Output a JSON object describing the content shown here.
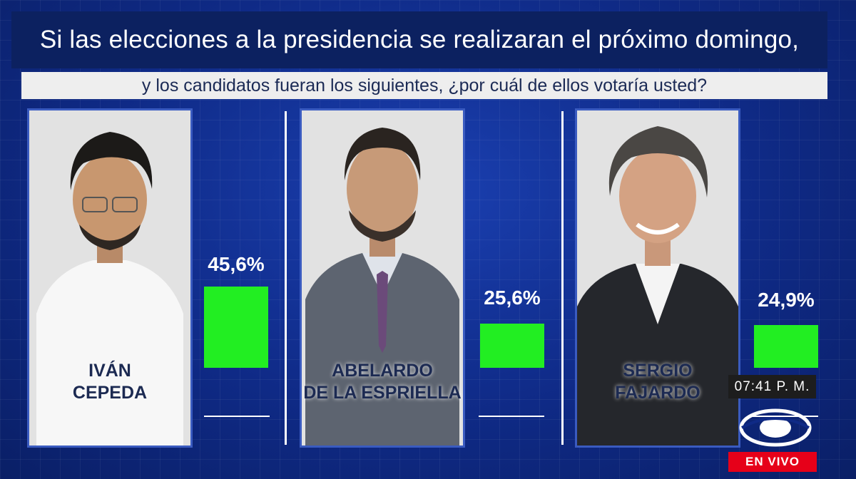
{
  "question": {
    "line1": "Si las elecciones a la presidencia se realizaran el próximo domingo,",
    "line2": "y los candidatos fueran los siguientes, ¿por cuál de ellos votaría usted?"
  },
  "chart_data": {
    "type": "bar",
    "categories": [
      "IVÁN CEPEDA",
      "ABELARDO DE LA ESPRIELLA",
      "SERGIO FAJARDO"
    ],
    "values": [
      45.6,
      25.6,
      24.9
    ],
    "value_labels": [
      "45,6%",
      "25,6%",
      "24,9%"
    ],
    "bar_color": "#22ee22"
  },
  "candidates": [
    {
      "name_line1": "IVÁN",
      "name_line2": "CEPEDA",
      "percent": "45,6%"
    },
    {
      "name_line1": "ABELARDO",
      "name_line2": "DE LA ESPRIELLA",
      "percent": "25,6%"
    },
    {
      "name_line1": "SERGIO",
      "name_line2": "FAJARDO",
      "percent": "24,9%"
    }
  ],
  "broadcast": {
    "time": "07:41 P. M.",
    "live_label": "EN VIVO"
  },
  "colors": {
    "background": "#0f2a86",
    "live_red": "#e60019"
  }
}
